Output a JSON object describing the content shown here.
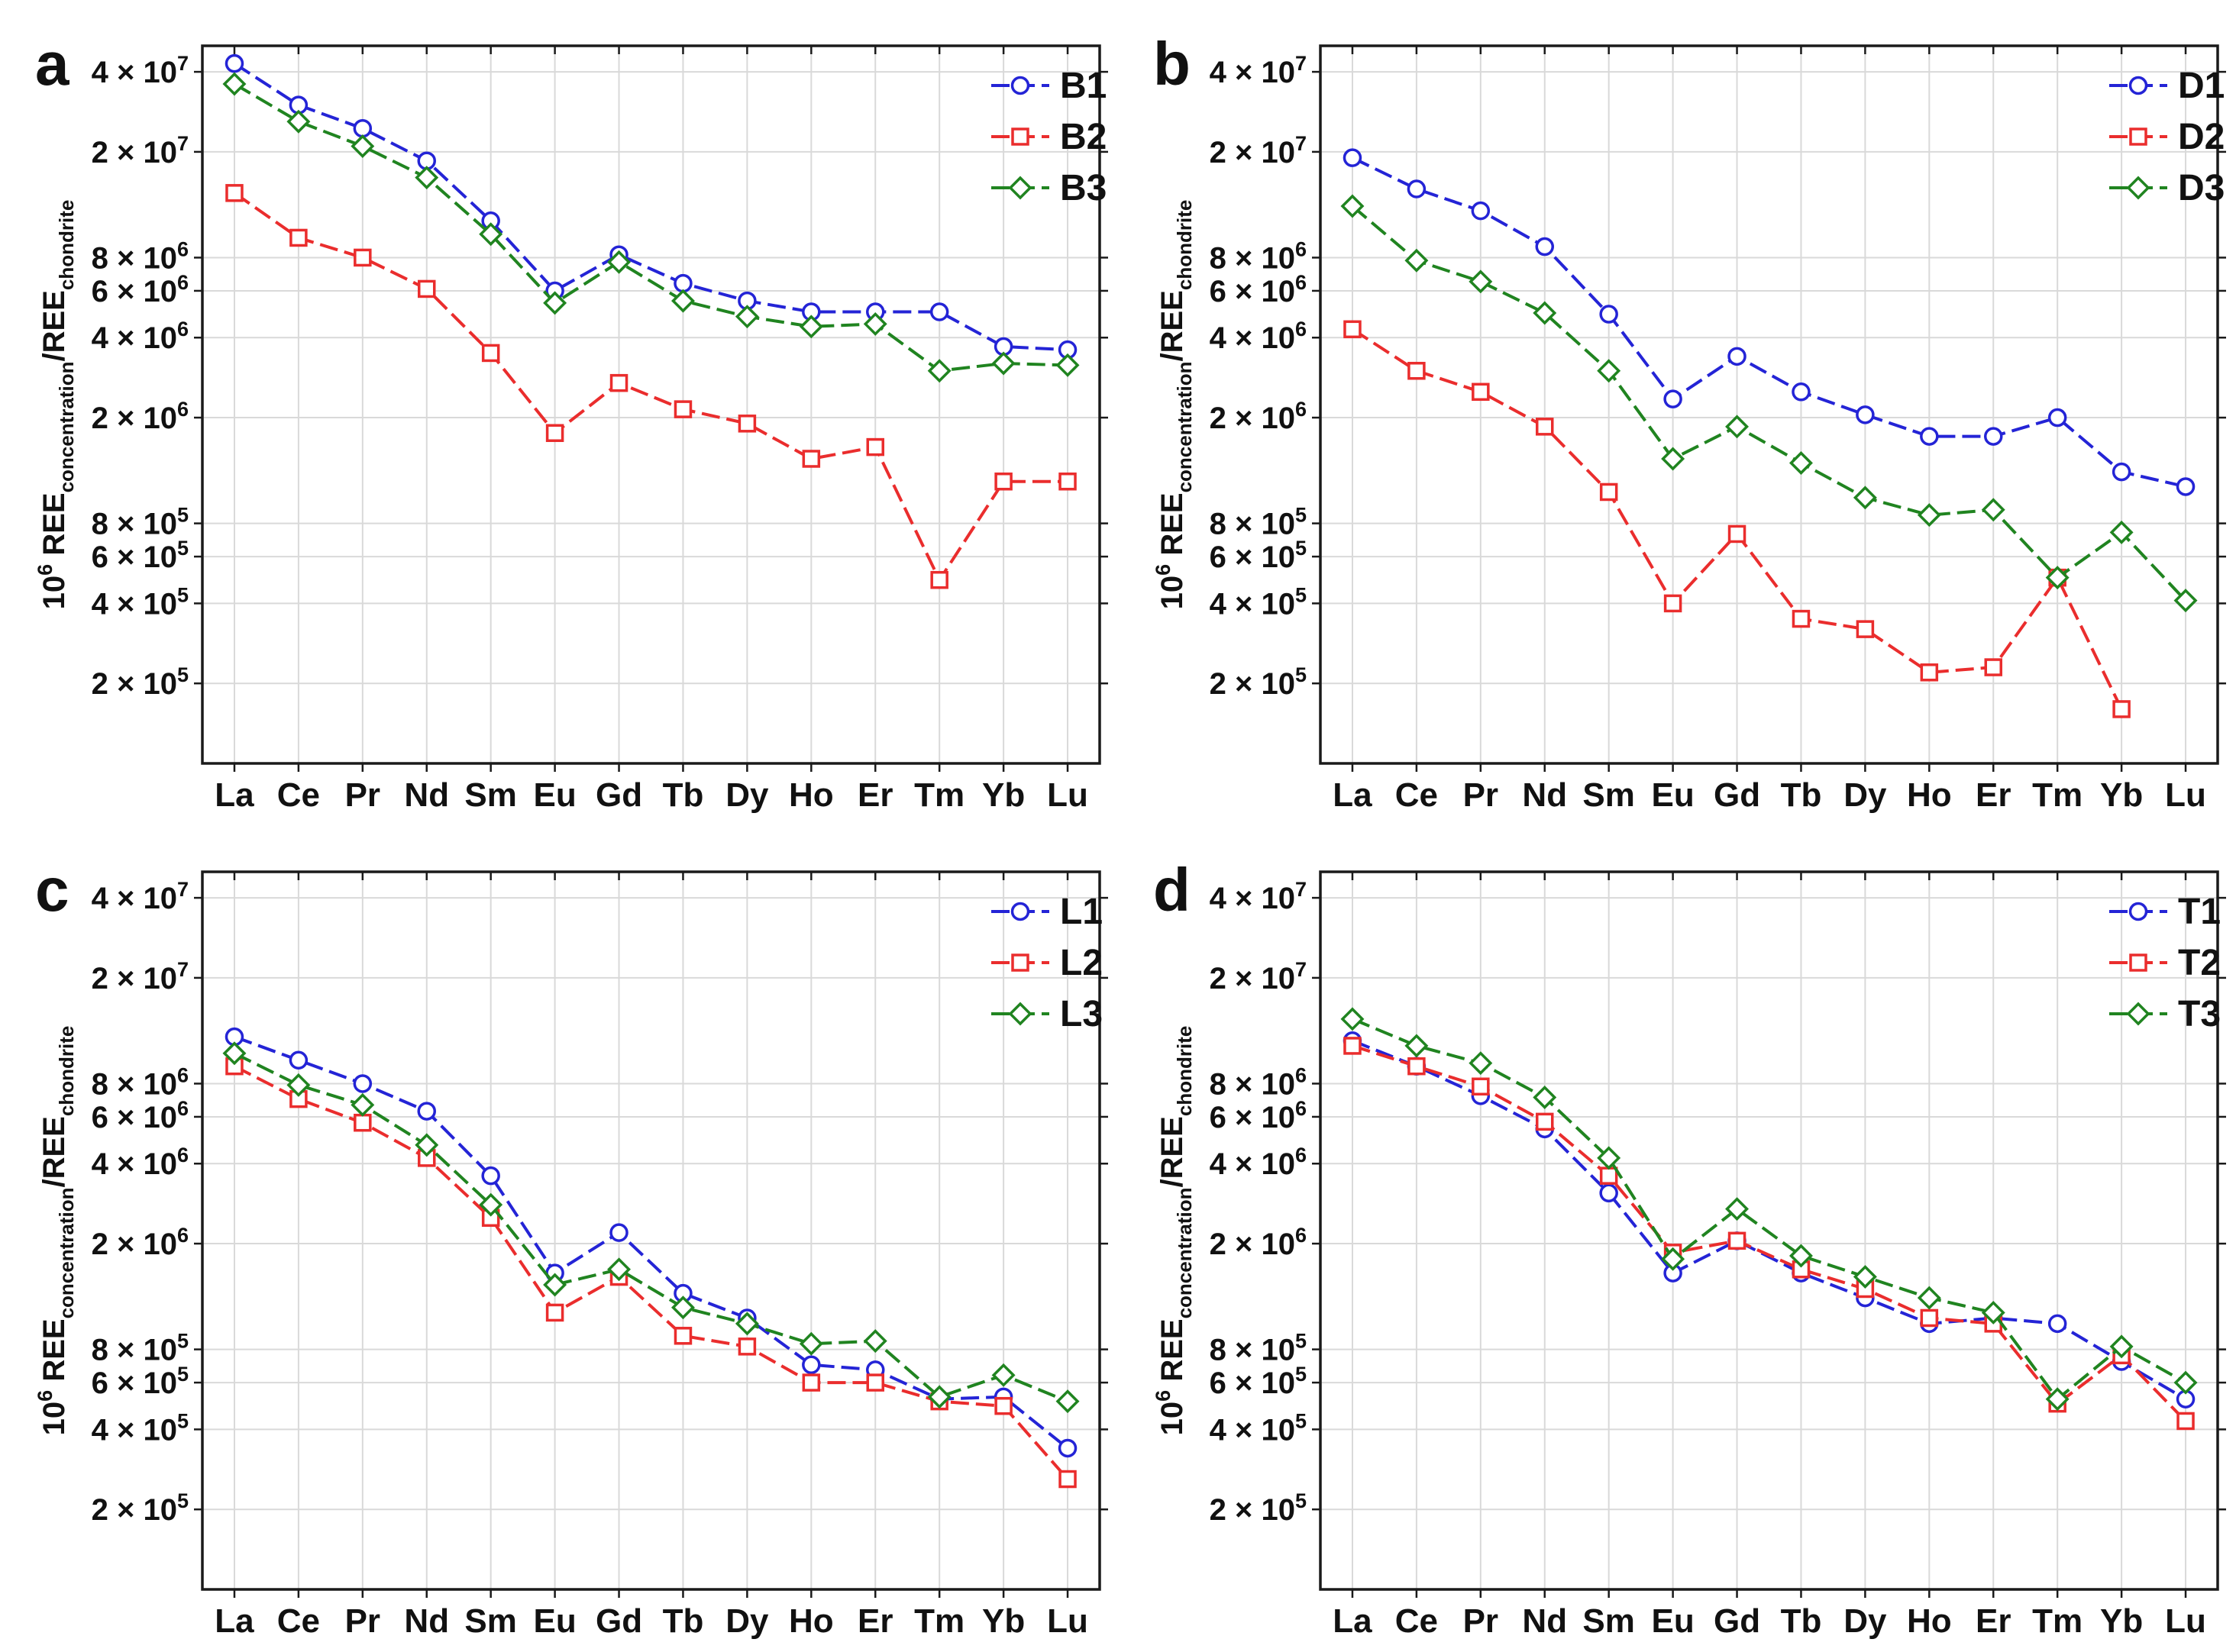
{
  "figure": {
    "background": "#ffffff",
    "panel_letters": [
      "a",
      "b",
      "c",
      "d"
    ]
  },
  "style": {
    "series_blue": "#2424d6",
    "series_red": "#ea2d2d",
    "series_green": "#208420",
    "grid_color": "#d9d9d9",
    "axis_color": "#1a1a1a",
    "label_color": "#111111"
  },
  "axes": {
    "x_categories": [
      "La",
      "Ce",
      "Pr",
      "Nd",
      "Sm",
      "Eu",
      "Gd",
      "Tb",
      "Dy",
      "Ho",
      "Er",
      "Tm",
      "Yb",
      "Lu"
    ],
    "y_axis_title": {
      "base": "10",
      "base_exp": "6",
      "ree_num": " REE",
      "sub_num": "concentration",
      "ree_den": "/REE",
      "sub_den": "chondrite"
    },
    "y_ticks": [
      {
        "mantissa": "4",
        "exp": "7",
        "value": 40000000
      },
      {
        "mantissa": "2",
        "exp": "7",
        "value": 20000000
      },
      {
        "mantissa": "8",
        "exp": "6",
        "value": 8000000
      },
      {
        "mantissa": "6",
        "exp": "6",
        "value": 6000000
      },
      {
        "mantissa": "4",
        "exp": "6",
        "value": 4000000
      },
      {
        "mantissa": "2",
        "exp": "6",
        "value": 2000000
      },
      {
        "mantissa": "8",
        "exp": "5",
        "value": 800000
      },
      {
        "mantissa": "6",
        "exp": "5",
        "value": 600000
      },
      {
        "mantissa": "4",
        "exp": "5",
        "value": 400000
      },
      {
        "mantissa": "2",
        "exp": "5",
        "value": 200000
      }
    ],
    "ylim": [
      100000,
      50000000
    ],
    "grid": true,
    "legend_position": "top-right"
  },
  "chart_data": [
    {
      "type": "line",
      "panel_label": "a",
      "categories": [
        "La",
        "Ce",
        "Pr",
        "Nd",
        "Sm",
        "Eu",
        "Gd",
        "Tb",
        "Dy",
        "Ho",
        "Er",
        "Tm",
        "Yb",
        "Lu"
      ],
      "xlabel": "",
      "ylabel": "10^6 REE_concentration/REE_chondrite",
      "ylim": [
        100000,
        50000000
      ],
      "series": [
        {
          "name": "B1",
          "color": "#2424d6",
          "marker": "circle",
          "values": [
            43000000,
            30000000,
            24500000,
            18500000,
            11000000,
            6000000,
            8200000,
            6400000,
            5500000,
            5000000,
            5000000,
            5000000,
            3700000,
            3600000
          ]
        },
        {
          "name": "B2",
          "color": "#ea2d2d",
          "marker": "square",
          "values": [
            14000000,
            9500000,
            8000000,
            6100000,
            3500000,
            1750000,
            2700000,
            2150000,
            1900000,
            1400000,
            1550000,
            490000,
            1150000,
            1150000
          ]
        },
        {
          "name": "B3",
          "color": "#208420",
          "marker": "diamond",
          "values": [
            36000000,
            26000000,
            21000000,
            16000000,
            9800000,
            5400000,
            7700000,
            5500000,
            4800000,
            4400000,
            4500000,
            3000000,
            3200000,
            3150000
          ]
        }
      ]
    },
    {
      "type": "line",
      "panel_label": "b",
      "categories": [
        "La",
        "Ce",
        "Pr",
        "Nd",
        "Sm",
        "Eu",
        "Gd",
        "Tb",
        "Dy",
        "Ho",
        "Er",
        "Tm",
        "Yb",
        "Lu"
      ],
      "xlabel": "",
      "ylabel": "10^6 REE_concentration/REE_chondrite",
      "ylim": [
        100000,
        50000000
      ],
      "series": [
        {
          "name": "D1",
          "color": "#2424d6",
          "marker": "circle",
          "values": [
            19000000,
            14500000,
            12000000,
            8800000,
            4900000,
            2350000,
            3400000,
            2500000,
            2050000,
            1700000,
            1700000,
            2000000,
            1250000,
            1100000
          ]
        },
        {
          "name": "D2",
          "color": "#ea2d2d",
          "marker": "square",
          "values": [
            4300000,
            3000000,
            2500000,
            1850000,
            1050000,
            400000,
            730000,
            350000,
            320000,
            220000,
            230000,
            500000,
            160000,
            null
          ]
        },
        {
          "name": "D3",
          "color": "#208420",
          "marker": "diamond",
          "values": [
            12500000,
            7800000,
            6500000,
            4950000,
            3000000,
            1400000,
            1850000,
            1350000,
            1000000,
            860000,
            900000,
            500000,
            740000,
            410000
          ]
        }
      ]
    },
    {
      "type": "line",
      "panel_label": "c",
      "categories": [
        "La",
        "Ce",
        "Pr",
        "Nd",
        "Sm",
        "Eu",
        "Gd",
        "Tb",
        "Dy",
        "Ho",
        "Er",
        "Tm",
        "Yb",
        "Lu"
      ],
      "xlabel": "",
      "ylabel": "10^6 REE_concentration/REE_chondrite",
      "ylim": [
        100000,
        50000000
      ],
      "series": [
        {
          "name": "L1",
          "color": "#2424d6",
          "marker": "circle",
          "values": [
            12000000,
            9800000,
            8000000,
            6300000,
            3600000,
            1550000,
            2200000,
            1300000,
            1050000,
            700000,
            670000,
            520000,
            530000,
            340000
          ]
        },
        {
          "name": "L2",
          "color": "#ea2d2d",
          "marker": "square",
          "values": [
            9300000,
            7000000,
            5700000,
            4200000,
            2500000,
            1100000,
            1500000,
            900000,
            820000,
            600000,
            600000,
            510000,
            490000,
            260000
          ]
        },
        {
          "name": "L3",
          "color": "#208420",
          "marker": "diamond",
          "values": [
            10400000,
            7900000,
            6650000,
            4700000,
            2800000,
            1400000,
            1600000,
            1150000,
            1000000,
            840000,
            860000,
            530000,
            640000,
            510000
          ]
        }
      ]
    },
    {
      "type": "line",
      "panel_label": "d",
      "categories": [
        "La",
        "Ce",
        "Pr",
        "Nd",
        "Sm",
        "Eu",
        "Gd",
        "Tb",
        "Dy",
        "Ho",
        "Er",
        "Tm",
        "Yb",
        "Lu"
      ],
      "xlabel": "",
      "ylabel": "10^6 REE_concentration/REE_chondrite",
      "ylim": [
        100000,
        50000000
      ],
      "series": [
        {
          "name": "T1",
          "color": "#2424d6",
          "marker": "circle",
          "values": [
            11600000,
            9300000,
            7200000,
            5400000,
            3100000,
            1550000,
            2050000,
            1550000,
            1250000,
            1000000,
            1050000,
            1000000,
            720000,
            520000
          ]
        },
        {
          "name": "T2",
          "color": "#ea2d2d",
          "marker": "square",
          "values": [
            11100000,
            9300000,
            7800000,
            5750000,
            3600000,
            1850000,
            2050000,
            1600000,
            1350000,
            1050000,
            1000000,
            500000,
            760000,
            430000
          ]
        },
        {
          "name": "T3",
          "color": "#208420",
          "marker": "diamond",
          "values": [
            14000000,
            11100000,
            9550000,
            7100000,
            4200000,
            1750000,
            2700000,
            1800000,
            1500000,
            1250000,
            1100000,
            520000,
            820000,
            600000
          ]
        }
      ]
    }
  ]
}
